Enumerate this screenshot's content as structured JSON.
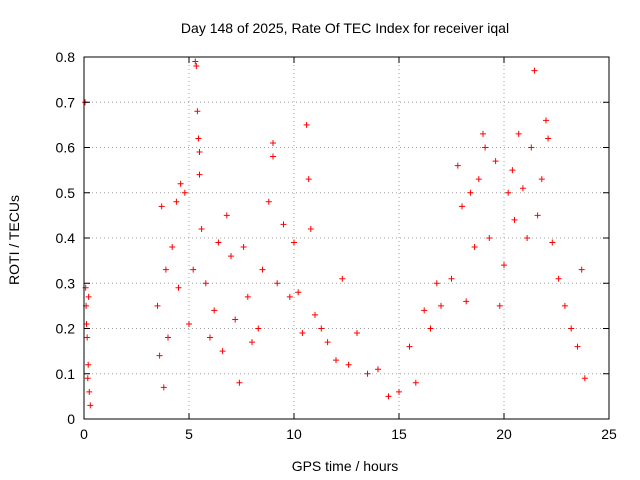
{
  "chart_data": {
    "type": "scatter",
    "title": "Day 148 of 2025, Rate Of TEC Index for receiver iqal",
    "xlabel": "GPS time / hours",
    "ylabel": "ROTI / TECUs",
    "xlim": [
      0,
      25
    ],
    "ylim": [
      0,
      0.8
    ],
    "xticks": [
      0,
      5,
      10,
      15,
      20,
      25
    ],
    "yticks": [
      0,
      0.1,
      0.2,
      0.3,
      0.4,
      0.5,
      0.6,
      0.7,
      0.8
    ],
    "xtick_labels": [
      "0",
      "5",
      "10",
      "15",
      "20",
      "25"
    ],
    "ytick_labels": [
      "0",
      "0.1",
      "0.2",
      "0.3",
      "0.4",
      "0.5",
      "0.6",
      "0.7",
      "0.8"
    ],
    "grid": true,
    "marker": "+",
    "color": "#ff0000",
    "series": [
      {
        "name": "ROTI",
        "points": [
          [
            0.05,
            0.7
          ],
          [
            0.08,
            0.29
          ],
          [
            0.1,
            0.25
          ],
          [
            0.15,
            0.18
          ],
          [
            0.2,
            0.12
          ],
          [
            0.25,
            0.06
          ],
          [
            0.3,
            0.03
          ],
          [
            0.12,
            0.21
          ],
          [
            0.22,
            0.27
          ],
          [
            0.18,
            0.09
          ],
          [
            3.5,
            0.25
          ],
          [
            3.6,
            0.14
          ],
          [
            3.7,
            0.47
          ],
          [
            3.8,
            0.07
          ],
          [
            3.9,
            0.33
          ],
          [
            4.0,
            0.18
          ],
          [
            4.2,
            0.38
          ],
          [
            4.4,
            0.48
          ],
          [
            4.5,
            0.29
          ],
          [
            4.6,
            0.52
          ],
          [
            4.8,
            0.5
          ],
          [
            5.0,
            0.21
          ],
          [
            5.2,
            0.33
          ],
          [
            5.3,
            0.79
          ],
          [
            5.35,
            0.78
          ],
          [
            5.4,
            0.68
          ],
          [
            5.45,
            0.62
          ],
          [
            5.5,
            0.59
          ],
          [
            5.5,
            0.54
          ],
          [
            5.6,
            0.42
          ],
          [
            5.8,
            0.3
          ],
          [
            6.0,
            0.18
          ],
          [
            6.2,
            0.24
          ],
          [
            6.4,
            0.39
          ],
          [
            6.6,
            0.15
          ],
          [
            6.8,
            0.45
          ],
          [
            7.0,
            0.36
          ],
          [
            7.2,
            0.22
          ],
          [
            7.4,
            0.08
          ],
          [
            7.6,
            0.38
          ],
          [
            7.8,
            0.27
          ],
          [
            8.0,
            0.17
          ],
          [
            8.3,
            0.2
          ],
          [
            8.5,
            0.33
          ],
          [
            8.8,
            0.48
          ],
          [
            9.0,
            0.61
          ],
          [
            9.0,
            0.58
          ],
          [
            9.2,
            0.3
          ],
          [
            9.5,
            0.43
          ],
          [
            9.8,
            0.27
          ],
          [
            10.0,
            0.39
          ],
          [
            10.2,
            0.28
          ],
          [
            10.4,
            0.19
          ],
          [
            10.6,
            0.65
          ],
          [
            10.7,
            0.53
          ],
          [
            10.8,
            0.42
          ],
          [
            11.0,
            0.23
          ],
          [
            11.3,
            0.2
          ],
          [
            11.6,
            0.17
          ],
          [
            12.0,
            0.13
          ],
          [
            12.3,
            0.31
          ],
          [
            12.6,
            0.12
          ],
          [
            13.0,
            0.19
          ],
          [
            13.5,
            0.1
          ],
          [
            14.0,
            0.11
          ],
          [
            14.5,
            0.05
          ],
          [
            15.0,
            0.06
          ],
          [
            15.5,
            0.16
          ],
          [
            15.8,
            0.08
          ],
          [
            16.2,
            0.24
          ],
          [
            16.5,
            0.2
          ],
          [
            16.8,
            0.3
          ],
          [
            17.0,
            0.25
          ],
          [
            17.5,
            0.31
          ],
          [
            17.8,
            0.56
          ],
          [
            18.0,
            0.47
          ],
          [
            18.2,
            0.26
          ],
          [
            18.4,
            0.5
          ],
          [
            18.6,
            0.38
          ],
          [
            18.8,
            0.53
          ],
          [
            19.0,
            0.63
          ],
          [
            19.1,
            0.6
          ],
          [
            19.3,
            0.4
          ],
          [
            19.6,
            0.57
          ],
          [
            19.8,
            0.25
          ],
          [
            20.0,
            0.34
          ],
          [
            20.2,
            0.5
          ],
          [
            20.4,
            0.55
          ],
          [
            20.5,
            0.44
          ],
          [
            20.7,
            0.63
          ],
          [
            20.9,
            0.51
          ],
          [
            21.1,
            0.4
          ],
          [
            21.3,
            0.6
          ],
          [
            21.45,
            0.77
          ],
          [
            21.6,
            0.45
          ],
          [
            21.8,
            0.53
          ],
          [
            22.0,
            0.66
          ],
          [
            22.1,
            0.62
          ],
          [
            22.3,
            0.39
          ],
          [
            22.6,
            0.31
          ],
          [
            22.9,
            0.25
          ],
          [
            23.2,
            0.2
          ],
          [
            23.5,
            0.16
          ],
          [
            23.7,
            0.33
          ],
          [
            23.85,
            0.09
          ]
        ]
      }
    ]
  }
}
